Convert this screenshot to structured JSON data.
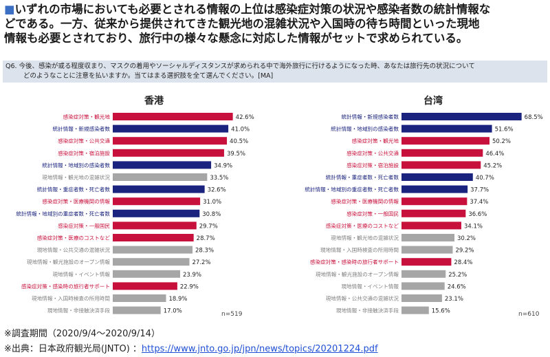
{
  "headline": {
    "marker": "■",
    "lines": [
      "いずれの市場においても必要とされる情報の上位は感染症対策の状況や感染者数の統計情報な",
      "どである。一方、従来から提供されてきた観光地の混雑状況や入国時の待ち時間といった現地",
      "情報も必要とされており、旅行中の様々な懸念に対応した情報がセットで求められている。"
    ]
  },
  "question": {
    "line1": "Q6. 今後、感染が或る程度収まり、マスクの着用やソーシャルディスタンスが求められる中で海外旅行に行けるようになった時、あなたは旅行先の状況について",
    "line2": "どのようなことに注意を払いますか。当てはまる選択肢を全て選んでください。[MA]"
  },
  "colors": {
    "red": "#c8103c",
    "navy": "#1a237e",
    "gray": "#a6a6a6",
    "label_gray": "#7f7f7f"
  },
  "chart_data": [
    {
      "type": "bar",
      "orientation": "horizontal",
      "title": "香港",
      "n_label": "n=519",
      "categories": [
        "感染症対策・観光地",
        "統計情報・新規感染者数",
        "感染症対策・公共交通",
        "感染症対策・宿泊施設",
        "統計情報・地域別の感染者数",
        "現地情報・観光地の混雑状況",
        "統計情報・重症者数・死亡者数",
        "感染症対策・医療機関の情報",
        "統計情報・地域別の重症者数・死亡者数",
        "感染症対策・一般国民",
        "感染症対策・医療のコストなど",
        "現地情報・公共交通の混雑状況",
        "現地情報・観光施設のオープン情報",
        "現地情報・イベント情報",
        "感染症対策・感染時の旅行者サポート",
        "現地情報・入国時検査の所用時間",
        "現地情報・非接触決済手段"
      ],
      "values": [
        42.6,
        41.0,
        40.5,
        39.5,
        34.9,
        33.5,
        32.6,
        31.0,
        30.8,
        29.7,
        28.7,
        28.3,
        27.2,
        23.9,
        22.9,
        18.9,
        17.0
      ],
      "labels": [
        "42.6%",
        "41.0%",
        "40.5%",
        "39.5%",
        "34.9%",
        "33.5%",
        "32.6%",
        "31.0%",
        "30.8%",
        "29.7%",
        "28.7%",
        "28.3%",
        "27.2%",
        "23.9%",
        "22.9%",
        "18.9%",
        "17.0%"
      ],
      "groups": [
        "red",
        "navy",
        "red",
        "red",
        "navy",
        "gray",
        "navy",
        "red",
        "navy",
        "red",
        "red",
        "gray",
        "gray",
        "gray",
        "red",
        "gray",
        "gray"
      ]
    },
    {
      "type": "bar",
      "orientation": "horizontal",
      "title": "台湾",
      "n_label": "n=610",
      "categories": [
        "統計情報・新規感染者数",
        "統計情報・地域別の感染者数",
        "感染症対策・観光地",
        "感染症対策・公共交通",
        "感染症対策・宿泊施設",
        "統計情報・重症者数・死亡者数",
        "統計情報・地域別の重症者数・死亡者数",
        "感染症対策・医療機関の情報",
        "感染症対策・一般国民",
        "感染症対策・医療のコストなど",
        "現地情報・観光地の混雑状況",
        "現地情報・入国時検査の所用時間",
        "感染症対策・感染時の旅行者サポート",
        "現地情報・観光施設のオープン情報",
        "現地情報・イベント情報",
        "現地情報・公共交通の混雑状況",
        "現地情報・非接触決済手段"
      ],
      "values": [
        68.5,
        51.6,
        50.2,
        46.4,
        45.2,
        40.7,
        37.7,
        37.4,
        36.6,
        34.1,
        30.2,
        29.2,
        28.4,
        25.2,
        24.6,
        23.1,
        15.6
      ],
      "labels": [
        "68.5%",
        "51.6%",
        "50.2%",
        "46.4%",
        "45.2%",
        "40.7%",
        "37.7%",
        "37.4%",
        "36.6%",
        "34.1%",
        "30.2%",
        "29.2%",
        "28.4%",
        "25.2%",
        "24.6%",
        "23.1%",
        "15.6%"
      ],
      "groups": [
        "navy",
        "navy",
        "red",
        "red",
        "red",
        "navy",
        "navy",
        "red",
        "red",
        "red",
        "gray",
        "gray",
        "red",
        "gray",
        "gray",
        "gray",
        "gray"
      ]
    }
  ],
  "footer": {
    "period": "※調査期間（2020/9/4～2020/9/14）",
    "source_prefix": "※出典：日本政府観光局(JNTO) ：",
    "source_url": "https://www.jnto.go.jp/jpn/news/topics/20201224.pdf"
  }
}
